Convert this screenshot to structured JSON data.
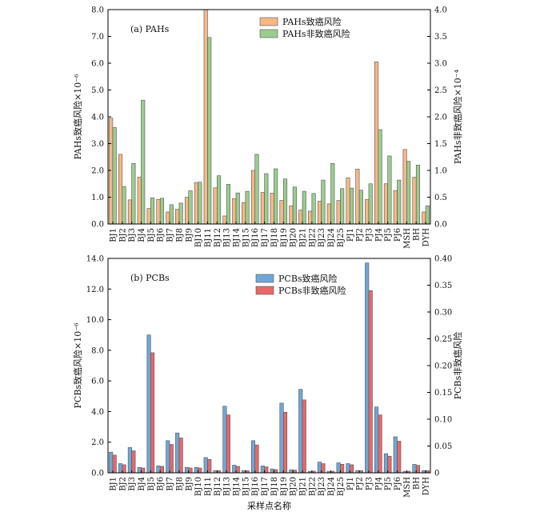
{
  "chart_data": [
    {
      "type": "bar",
      "panel_label": "(a) PAHs",
      "categories": [
        "BJ1",
        "BJ2",
        "BJ3",
        "BJ4",
        "BJ5",
        "BJ6",
        "BJ7",
        "BJ8",
        "BJ9",
        "BJ10",
        "BJ11",
        "BJ12",
        "BJ13",
        "BJ14",
        "BJ15",
        "BJ16",
        "BJ17",
        "BJ18",
        "BJ19",
        "BJ20",
        "BJ21",
        "BJ22",
        "BJ23",
        "BJ24",
        "BJ25",
        "PJ1",
        "PJ2",
        "PJ3",
        "PJ4",
        "PJ5",
        "PJ6",
        "MSH",
        "BH",
        "DYH"
      ],
      "ylabel": "PAHs致癌风险×10⁻⁶",
      "y2label": "PAHs非致癌风险×10⁻⁴",
      "ylim": [
        0,
        8
      ],
      "y2lim": [
        0,
        4
      ],
      "yticks": [
        "0.0",
        "1.0",
        "2.0",
        "3.0",
        "4.0",
        "5.0",
        "6.0",
        "7.0",
        "8.0"
      ],
      "y2ticks": [
        "0.0",
        "0.5",
        "1.0",
        "1.5",
        "2.0",
        "2.5",
        "3.0",
        "3.5",
        "4.0"
      ],
      "legend_position": "top-center",
      "series": [
        {
          "name": "PAHs致癌风险",
          "axis": "left",
          "color": "#F5B887",
          "values": [
            3.95,
            2.6,
            0.9,
            1.75,
            0.58,
            0.92,
            0.45,
            0.55,
            1.0,
            1.55,
            8.0,
            1.35,
            0.3,
            0.95,
            0.8,
            2.0,
            1.18,
            1.15,
            0.88,
            0.68,
            0.52,
            0.48,
            0.85,
            0.75,
            0.88,
            1.72,
            2.05,
            0.92,
            6.05,
            1.5,
            1.25,
            2.78,
            1.75,
            0.45
          ]
        },
        {
          "name": "PAHs非致癌风险",
          "axis": "right",
          "color": "#9ACD8F",
          "values": [
            1.8,
            0.7,
            1.13,
            2.31,
            0.49,
            0.48,
            0.36,
            0.39,
            0.62,
            0.78,
            3.48,
            0.9,
            0.74,
            0.58,
            0.61,
            1.3,
            0.94,
            1.03,
            0.84,
            0.69,
            0.61,
            0.57,
            0.82,
            1.13,
            0.66,
            0.67,
            0.63,
            0.75,
            1.76,
            1.27,
            0.82,
            1.17,
            1.1,
            0.34
          ]
        }
      ]
    },
    {
      "type": "bar",
      "panel_label": "(b) PCBs",
      "categories": [
        "BJ1",
        "BJ2",
        "BJ3",
        "BJ4",
        "BJ5",
        "BJ6",
        "BJ7",
        "BJ8",
        "BJ9",
        "BJ10",
        "BJ11",
        "BJ12",
        "BJ13",
        "BJ14",
        "BJ15",
        "BJ16",
        "BJ17",
        "BJ18",
        "BJ19",
        "BJ20",
        "BJ21",
        "BJ22",
        "BJ23",
        "BJ24",
        "BJ25",
        "PJ1",
        "PJ2",
        "PJ3",
        "PJ4",
        "PJ5",
        "PJ6",
        "MSH",
        "BH",
        "DYH"
      ],
      "xlabel": "采样点名称",
      "ylabel": "PCBs致癌风险×10⁻⁶",
      "y2label": "PCBs非致癌风险",
      "ylim": [
        0,
        14
      ],
      "y2lim": [
        0,
        0.4
      ],
      "yticks": [
        "0.0",
        "2.0",
        "4.0",
        "6.0",
        "8.0",
        "10.0",
        "12.0",
        "14.0"
      ],
      "y2ticks": [
        "0",
        "0.05",
        "0.10",
        "0.15",
        "0.20",
        "0.25",
        "0.30",
        "0.35",
        "0.40"
      ],
      "legend_position": "top-center",
      "series": [
        {
          "name": "PCBs致癌风险",
          "axis": "left",
          "color": "#6FA8D6",
          "values": [
            1.35,
            0.6,
            1.65,
            0.35,
            9.0,
            0.45,
            2.1,
            2.6,
            0.35,
            0.35,
            1.0,
            0.15,
            4.35,
            0.5,
            0.15,
            2.1,
            0.45,
            0.25,
            4.55,
            0.2,
            5.45,
            0.1,
            0.7,
            0.1,
            0.65,
            0.6,
            0.15,
            13.7,
            4.3,
            1.25,
            2.35,
            0.1,
            0.55,
            0.15
          ]
        },
        {
          "name": "PCBs非致癌风险",
          "axis": "right",
          "color": "#E8686A",
          "values": [
            0.033,
            0.015,
            0.041,
            0.009,
            0.224,
            0.012,
            0.053,
            0.065,
            0.009,
            0.009,
            0.025,
            0.004,
            0.108,
            0.012,
            0.004,
            0.052,
            0.011,
            0.006,
            0.113,
            0.005,
            0.136,
            0.003,
            0.017,
            0.003,
            0.016,
            0.015,
            0.004,
            0.34,
            0.108,
            0.031,
            0.059,
            0.003,
            0.014,
            0.004
          ]
        }
      ]
    }
  ]
}
